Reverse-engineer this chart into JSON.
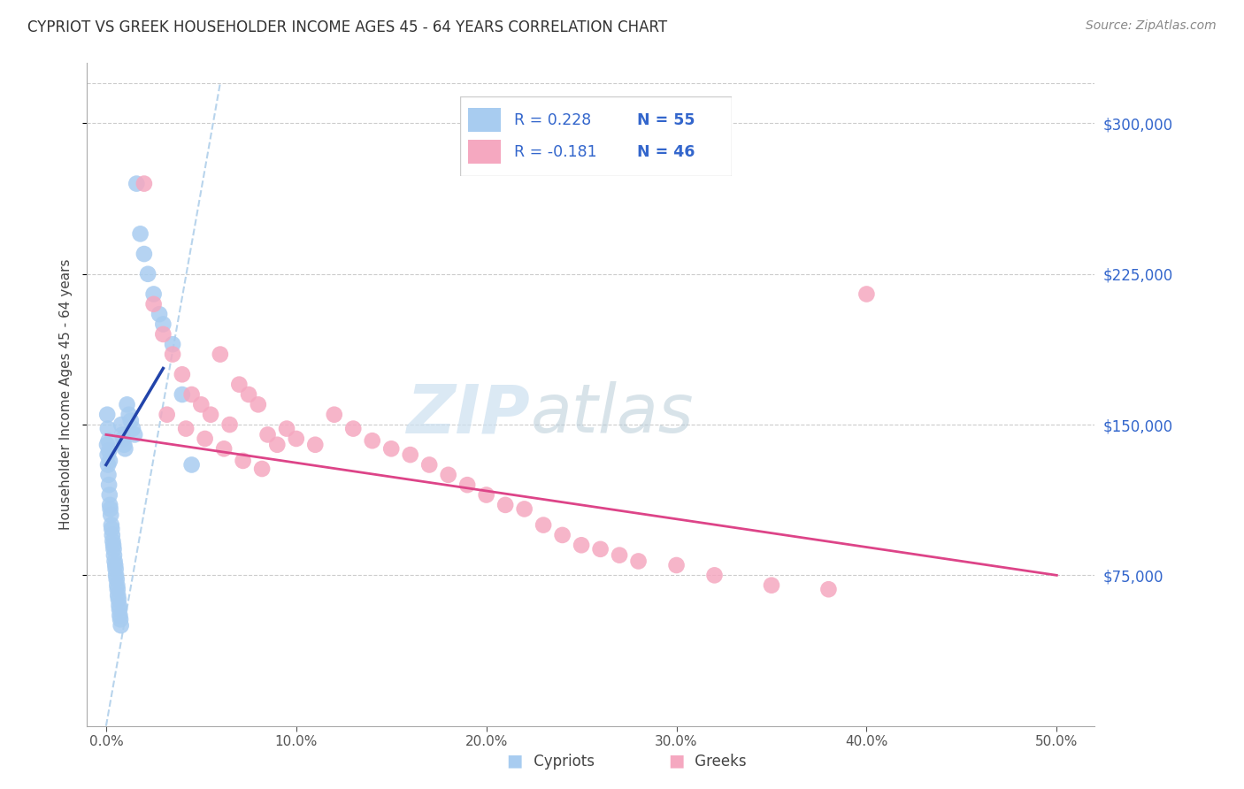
{
  "title": "CYPRIOT VS GREEK HOUSEHOLDER INCOME AGES 45 - 64 YEARS CORRELATION CHART",
  "source": "Source: ZipAtlas.com",
  "ylabel": "Householder Income Ages 45 - 64 years",
  "cypriot_color": "#a8ccf0",
  "greek_color": "#f5a8c0",
  "cypriot_line_color": "#2244aa",
  "greek_line_color": "#dd4488",
  "dashed_line_color": "#b8d4ec",
  "legend_text_color": "#3366cc",
  "r_cypriot": "0.228",
  "n_cypriot": "55",
  "r_greek": "-0.181",
  "n_greek": "46",
  "cypriot_x": [
    0.05,
    0.08,
    0.1,
    0.12,
    0.15,
    0.18,
    0.2,
    0.22,
    0.25,
    0.28,
    0.3,
    0.32,
    0.35,
    0.38,
    0.4,
    0.42,
    0.45,
    0.48,
    0.5,
    0.52,
    0.55,
    0.58,
    0.6,
    0.62,
    0.65,
    0.68,
    0.7,
    0.72,
    0.75,
    0.78,
    0.8,
    0.85,
    0.9,
    0.95,
    1.0,
    1.1,
    1.2,
    1.3,
    1.4,
    1.5,
    1.6,
    1.8,
    2.0,
    2.2,
    2.5,
    2.8,
    3.0,
    3.5,
    4.0,
    4.5,
    0.06,
    0.09,
    0.13,
    0.16,
    0.19
  ],
  "cypriot_y": [
    140000,
    135000,
    130000,
    125000,
    120000,
    115000,
    110000,
    108000,
    105000,
    100000,
    98000,
    95000,
    92000,
    90000,
    88000,
    85000,
    82000,
    80000,
    78000,
    75000,
    73000,
    70000,
    68000,
    65000,
    63000,
    60000,
    58000,
    55000,
    53000,
    50000,
    150000,
    145000,
    143000,
    140000,
    138000,
    160000,
    155000,
    152000,
    148000,
    145000,
    270000,
    245000,
    235000,
    225000,
    215000,
    205000,
    200000,
    190000,
    165000,
    130000,
    155000,
    148000,
    142000,
    137000,
    132000
  ],
  "greek_x": [
    2.0,
    2.5,
    3.0,
    3.5,
    4.0,
    4.5,
    5.0,
    5.5,
    6.0,
    6.5,
    7.0,
    7.5,
    8.0,
    8.5,
    9.0,
    9.5,
    10.0,
    11.0,
    12.0,
    13.0,
    14.0,
    15.0,
    16.0,
    17.0,
    18.0,
    19.0,
    20.0,
    21.0,
    22.0,
    23.0,
    24.0,
    25.0,
    26.0,
    27.0,
    28.0,
    30.0,
    32.0,
    35.0,
    38.0,
    40.0,
    3.2,
    4.2,
    5.2,
    6.2,
    7.2,
    8.2
  ],
  "greek_y": [
    270000,
    210000,
    195000,
    185000,
    175000,
    165000,
    160000,
    155000,
    185000,
    150000,
    170000,
    165000,
    160000,
    145000,
    140000,
    148000,
    143000,
    140000,
    155000,
    148000,
    142000,
    138000,
    135000,
    130000,
    125000,
    120000,
    115000,
    110000,
    108000,
    100000,
    95000,
    90000,
    88000,
    85000,
    82000,
    80000,
    75000,
    70000,
    68000,
    215000,
    155000,
    148000,
    143000,
    138000,
    132000,
    128000
  ]
}
